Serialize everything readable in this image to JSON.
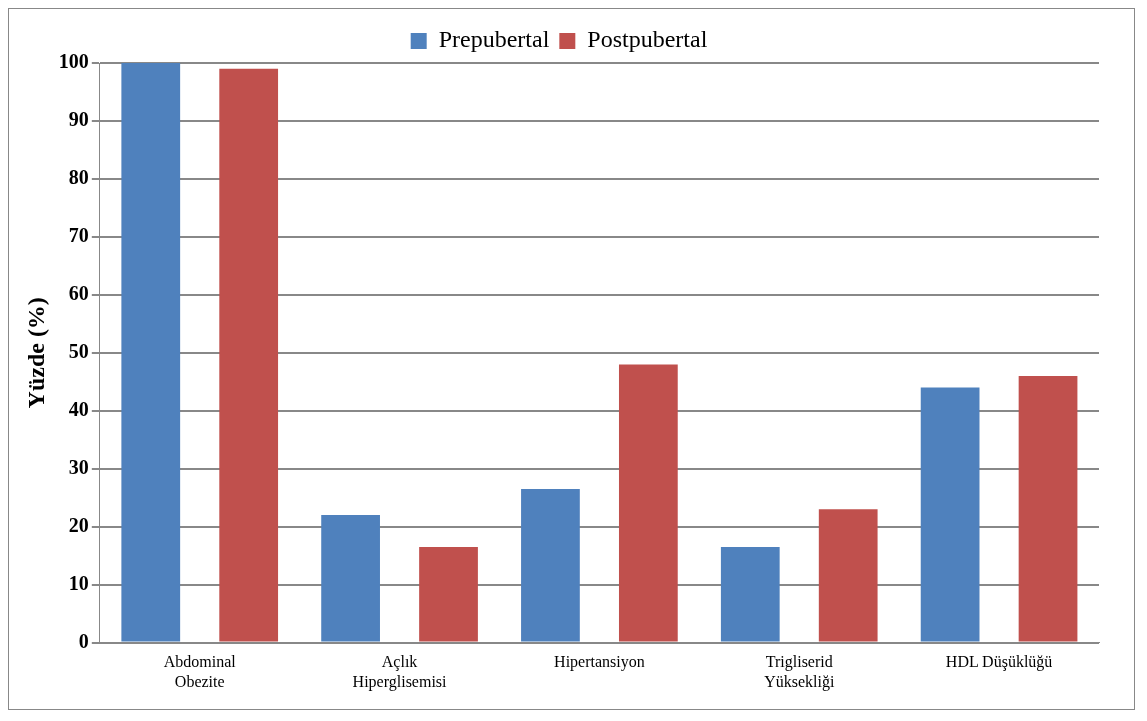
{
  "chart_data": {
    "type": "bar",
    "ylabel": "Yüzde (%)",
    "categories": [
      "Abdominal Obezite",
      "Açlık Hiperglisemisi",
      "Hipertansiyon",
      "Trigliserid Yüksekliği",
      "HDL Düşüklüğü"
    ],
    "series": [
      {
        "name": "Prepubertal",
        "color": "#4f81bd",
        "values": [
          100,
          22,
          26.5,
          16.5,
          44
        ]
      },
      {
        "name": "Postpubertal",
        "color": "#c0504d",
        "values": [
          99,
          16.5,
          48,
          23,
          46
        ]
      }
    ],
    "ylim": [
      0,
      100
    ],
    "yticks": [
      0,
      10,
      20,
      30,
      40,
      50,
      60,
      70,
      80,
      90,
      100
    ],
    "grid": "y",
    "legend": "top"
  }
}
